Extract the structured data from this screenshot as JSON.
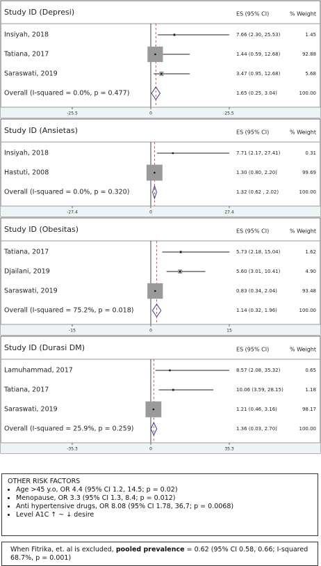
{
  "chart_data": [
    {
      "type": "forest",
      "title": "Study ID (Depresi)",
      "es_header": "ES (95% CI)",
      "weight_header": "% Weight",
      "categories": [
        "Insiyah, 2018",
        "Tatiana, 2017",
        "Saraswati, 2019"
      ],
      "values": [
        7.66,
        1.44,
        3.47
      ],
      "lower": [
        2.3,
        0.59,
        0.95
      ],
      "upper": [
        25.53,
        12.68,
        12.68
      ],
      "value_labels": [
        "7.66 (2.30, 25.53)",
        "1.44 (0.59, 12.68)",
        "3.47 (0.95, 12.68)"
      ],
      "weights": [
        1.45,
        92.88,
        5.68
      ],
      "weight_labels": [
        "1.45",
        "92.88",
        "5.68"
      ],
      "overall": {
        "label": "Overall (I-squared = 0.0%, p = 0.477)",
        "value": 1.65,
        "lower": 0.25,
        "upper": 3.04,
        "value_label": "1.65 (0.25, 3.04)",
        "weight": 100,
        "weight_label": "100.00"
      },
      "xlim": [
        -25.5,
        25.5
      ],
      "xticks": [
        -25.5,
        0,
        25.5
      ],
      "color": "#9a9a9a"
    },
    {
      "type": "forest",
      "title": "Study ID (Ansietas)",
      "es_header": "ES (95% CI)",
      "weight_header": "% Weight",
      "categories": [
        "Insiyah, 2018",
        "Hastuti, 2008"
      ],
      "values": [
        7.71,
        1.3
      ],
      "lower": [
        2.17,
        0.8
      ],
      "upper": [
        27.41,
        2.2
      ],
      "value_labels": [
        "7.71 (2.17, 27.41)",
        "1.30 (0.80, 2.20)"
      ],
      "weights": [
        0.31,
        99.69
      ],
      "weight_labels": [
        "0.31",
        "99.69"
      ],
      "overall": {
        "label": "Overall (I-squared = 0.0%, p = 0.320)",
        "value": 1.32,
        "lower": 0.62,
        "upper": 2.02,
        "value_label": "1.32 (0.62 , 2.02)",
        "weight": 100,
        "weight_label": "100.00"
      },
      "xlim": [
        -27.4,
        27.4
      ],
      "xticks": [
        -27.4,
        0,
        27.4
      ],
      "color": "#9a9a9a"
    },
    {
      "type": "forest",
      "title": "Study ID (Obesitas)",
      "es_header": "ES (95% CI)",
      "weight_header": "% Weight",
      "categories": [
        "Tatiana, 2017",
        "Djailani, 2019",
        "Saraswati, 2019"
      ],
      "values": [
        5.73,
        5.6,
        0.83
      ],
      "lower": [
        2.18,
        3.01,
        0.34
      ],
      "upper": [
        15.04,
        10.41,
        2.04
      ],
      "value_labels": [
        "5.73 (2.18, 15.04)",
        "5.60 (3.01, 10.41)",
        "0.83 (0.34, 2.04)"
      ],
      "weights": [
        1.62,
        4.9,
        93.48
      ],
      "weight_labels": [
        "1.62",
        "4.90",
        "93.48"
      ],
      "overall": {
        "label": "Overall (I-squared = 75.2%, p = 0.018)",
        "value": 1.14,
        "lower": 0.32,
        "upper": 1.96,
        "value_label": "1.14 (0.32, 1.96)",
        "weight": 100,
        "weight_label": "100.00"
      },
      "xlim": [
        -15,
        15
      ],
      "xticks": [
        -15,
        0,
        15
      ],
      "color": "#9a9a9a"
    },
    {
      "type": "forest",
      "title": "Study ID (Durasi DM)",
      "es_header": "ES (95% CI)",
      "weight_header": "% Weight",
      "categories": [
        "Lamuhammad, 2017",
        "Tatiana, 2017",
        "Saraswati, 2019"
      ],
      "values": [
        8.57,
        10.06,
        1.21
      ],
      "lower": [
        2.08,
        3.59,
        0.46
      ],
      "upper": [
        35.32,
        28.15,
        3.16
      ],
      "value_labels": [
        "8.57 (2.08, 35.32)",
        "10.06 (3.59, 28.15)",
        "1.21 (0.46, 3.16)"
      ],
      "weights": [
        0.65,
        1.18,
        98.17
      ],
      "weight_labels": [
        "0.65",
        "1.18",
        "98.17"
      ],
      "overall": {
        "label": "Overall (I-squared = 25.9%, p = 0.259)",
        "value": 1.36,
        "lower": 0.03,
        "upper": 2.7,
        "value_label": "1.36 (0.03, 2.70)",
        "weight": 100,
        "weight_label": "100.00"
      },
      "xlim": [
        -35.3,
        35.3
      ],
      "xticks": [
        -35.3,
        0,
        35.3
      ],
      "color": "#9a9a9a"
    }
  ],
  "notes": {
    "title": "OTHER RISK FACTORS",
    "items": [
      "Age >45 y.o, OR 4.4 (95% CI 1.2, 14.5; p = 0.02)",
      "Menopause, OR 3.3 (95% CI 1.3, 8.4; p = 0.012)",
      "Anti hypertensive drugs, OR 8.08 (95% CI 1.78, 36,7; p =  0.0068)",
      "Level A1C ↑ ~ ↓ desire"
    ]
  },
  "summary": {
    "parts": [
      "When Fitrika, et. al is excluded, ",
      "pooled prevalence",
      " = 0.62 (95% CI 0.58, 0.66; I-squared 68.7%, p = 0.001)"
    ]
  }
}
